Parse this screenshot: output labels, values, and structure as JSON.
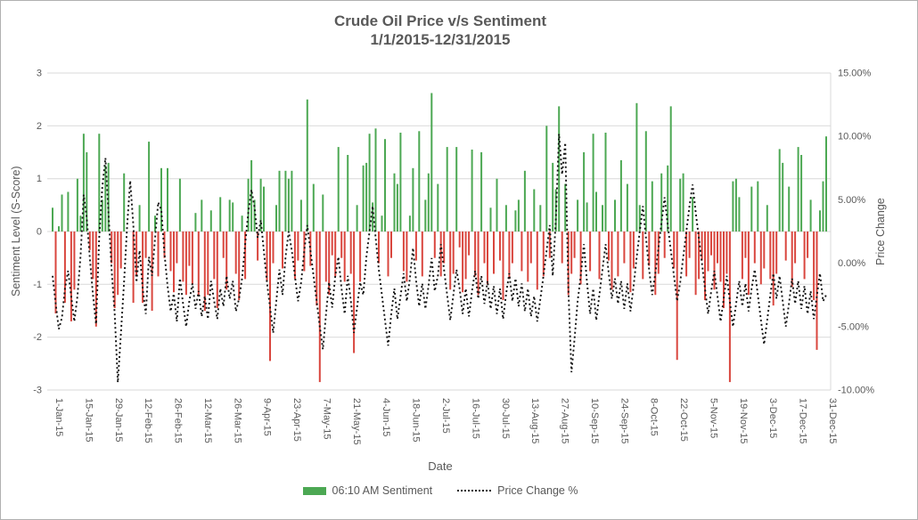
{
  "window": {
    "background": "#ffffff",
    "border_color": "#b0b0b0"
  },
  "chart": {
    "title": "Crude Oil  Price v/s Sentiment",
    "subtitle": "1/1/2015-12/31/2015",
    "x_axis_title": "Date",
    "y_axis_left_title": "Sentiment Level (S-Score)",
    "y_axis_right_title": "Price Change",
    "legend": {
      "sentiment_label": "06:10 AM Sentiment",
      "price_label": "Price Change %"
    }
  },
  "chart_data": {
    "type": "combo-bar-line",
    "title": "Crude Oil  Price v/s Sentiment",
    "subtitle": "1/1/2015-12/31/2015",
    "xlabel": "Date",
    "ylabel_left": "Sentiment Level (S-Score)",
    "ylabel_right": "Price Change",
    "grid": true,
    "legend_position": "bottom",
    "colors": {
      "bar_positive": "#4CA853",
      "bar_negative": "#D9463E",
      "line": "#141414",
      "gridline": "#d9d9d9",
      "text": "#595959"
    },
    "y_axis_left": {
      "min": -3,
      "max": 3,
      "tick_values": [
        3,
        2,
        1,
        0,
        -1,
        -2,
        -3
      ]
    },
    "y_axis_right": {
      "min": -10,
      "max": 15,
      "tick_values": [
        15,
        10,
        5,
        0,
        -5,
        -10
      ],
      "tick_labels": [
        "15.00%",
        "10.00%",
        "5.00%",
        "0.00%",
        "-5.00%",
        "-10.00%"
      ]
    },
    "x_ticks": [
      "1-Jan-15",
      "15-Jan-15",
      "29-Jan-15",
      "12-Feb-15",
      "26-Feb-15",
      "12-Mar-15",
      "26-Mar-15",
      "9-Apr-15",
      "23-Apr-15",
      "7-May-15",
      "21-May-15",
      "4-Jun-15",
      "18-Jun-15",
      "2-Jul-15",
      "16-Jul-15",
      "30-Jul-15",
      "13-Aug-15",
      "27-Aug-15",
      "10-Sep-15",
      "24-Sep-15",
      "8-Oct-15",
      "22-Oct-15",
      "5-Nov-15",
      "19-Nov-15",
      "3-Dec-15",
      "17-Dec-15",
      "31-Dec-15"
    ],
    "series": [
      {
        "name": "06:10 AM Sentiment",
        "type": "bar",
        "axis": "left",
        "values": [
          0.45,
          -1.55,
          0.1,
          0.7,
          -1.35,
          0.75,
          -1.7,
          -1.1,
          1.0,
          0.3,
          1.85,
          1.5,
          -0.35,
          -0.9,
          -1.8,
          1.85,
          0.6,
          1.25,
          1.3,
          -0.6,
          -1.45,
          -1.2,
          -0.7,
          1.1,
          0,
          0,
          -1.35,
          -0.85,
          0.5,
          -1.35,
          -0.5,
          1.7,
          -1.5,
          0.3,
          -0.85,
          1.2,
          -0.5,
          1.2,
          -0.75,
          -1.15,
          -0.6,
          1.0,
          -0.95,
          -1.2,
          -0.65,
          -1.0,
          0.35,
          -1.2,
          0.6,
          -1.5,
          -1.2,
          0.4,
          -0.9,
          -1.45,
          0.65,
          -0.5,
          -1.1,
          0.6,
          0.55,
          -0.8,
          -1.3,
          0.3,
          -0.9,
          1.0,
          1.35,
          0.6,
          -0.55,
          1.0,
          0.85,
          -0.95,
          -2.45,
          -0.6,
          0.5,
          1.15,
          -0.7,
          1.15,
          1.0,
          1.15,
          -0.9,
          -0.55,
          0.6,
          -0.75,
          2.5,
          -0.65,
          0.9,
          -1.4,
          -2.85,
          0.7,
          -0.95,
          -1.2,
          -0.45,
          -0.85,
          1.6,
          -0.5,
          -0.95,
          1.45,
          -0.8,
          -2.3,
          0.5,
          -0.95,
          1.25,
          1.3,
          1.85,
          0.55,
          1.95,
          -0.6,
          0.3,
          1.75,
          -0.85,
          -0.5,
          1.1,
          0.9,
          1.87,
          -0.75,
          -0.95,
          0.3,
          1.2,
          -0.55,
          1.9,
          -0.85,
          0.6,
          1.1,
          2.62,
          -0.5,
          0.9,
          -0.85,
          -0.6,
          1.6,
          -1.1,
          -0.8,
          1.6,
          -0.3,
          -1.15,
          -0.9,
          -0.45,
          1.55,
          -0.85,
          -1.2,
          1.5,
          -0.6,
          -1.0,
          0.45,
          -0.8,
          1.0,
          -0.55,
          -1.3,
          0.5,
          -0.9,
          -0.6,
          0.4,
          0.6,
          -0.75,
          1.15,
          -0.95,
          -0.6,
          0.8,
          -1.1,
          0.5,
          -0.85,
          2.0,
          -0.5,
          1.3,
          0.8,
          2.37,
          -0.6,
          0.9,
          -1.2,
          -0.8,
          -0.5,
          0.6,
          -1.0,
          1.5,
          0.55,
          -0.75,
          1.85,
          0.75,
          -0.9,
          0.5,
          1.87,
          -0.55,
          -1.1,
          0.6,
          -0.85,
          1.35,
          -0.6,
          0.9,
          -1.15,
          -0.7,
          2.43,
          0.5,
          -0.9,
          1.9,
          -0.65,
          0.95,
          -1.2,
          -0.8,
          1.1,
          -0.5,
          1.25,
          2.37,
          -0.7,
          -2.43,
          1.0,
          1.1,
          -0.85,
          -0.5,
          0.65,
          -1.2,
          -0.9,
          -0.55,
          -1.3,
          -0.75,
          -0.45,
          -1.1,
          -0.6,
          -0.95,
          -1.45,
          -0.8,
          -2.85,
          0.95,
          1.0,
          0.65,
          -0.9,
          -0.5,
          -1.2,
          0.85,
          -0.6,
          0.95,
          -1.0,
          -0.7,
          0.5,
          -0.9,
          -1.4,
          -0.8,
          1.56,
          1.3,
          -0.55,
          0.85,
          -1.05,
          -0.6,
          1.6,
          1.45,
          -0.9,
          -0.5,
          0.6,
          -1.3,
          -2.24,
          0.4,
          0.95,
          1.8
        ]
      },
      {
        "name": "Price Change %",
        "type": "line",
        "style": "dotted",
        "axis": "right",
        "values": [
          -1.0,
          -3.2,
          -5.2,
          -4.3,
          -2.0,
          -0.6,
          -2.6,
          -4.6,
          -2.6,
          0.6,
          5.4,
          3.6,
          0.4,
          -2.5,
          -4.8,
          2.0,
          6.0,
          8.3,
          4.0,
          -0.5,
          -4.0,
          -9.4,
          -5.5,
          -1.5,
          3.0,
          6.5,
          3.0,
          -1.5,
          1.0,
          -2.0,
          -4.0,
          0.5,
          -1.0,
          2.0,
          4.8,
          4.2,
          0.8,
          -1.8,
          -3.8,
          -2.4,
          -4.6,
          -1.2,
          -3.2,
          -5.0,
          -3.0,
          -1.6,
          -3.6,
          -2.2,
          -4.2,
          -2.6,
          -4.4,
          -1.4,
          -3.0,
          -4.4,
          -2.0,
          -3.4,
          -1.0,
          -2.8,
          -1.4,
          -3.8,
          -2.8,
          -1.2,
          1.5,
          4.0,
          5.8,
          4.4,
          2.0,
          3.4,
          1.0,
          -1.5,
          -3.5,
          -5.5,
          -3.0,
          -0.5,
          -2.5,
          0.5,
          2.5,
          1.0,
          -1.0,
          -3.0,
          -1.5,
          1.0,
          3.0,
          1.0,
          -1.0,
          -3.0,
          -5.0,
          -6.8,
          -4.0,
          -1.5,
          -3.5,
          -1.0,
          0.5,
          -2.0,
          -4.0,
          -1.0,
          -3.0,
          -5.5,
          -3.5,
          -1.5,
          -2.5,
          0.5,
          2.5,
          4.5,
          2.0,
          -0.5,
          -2.5,
          -4.5,
          -6.5,
          -4.0,
          -2.0,
          -4.4,
          -2.6,
          -0.8,
          -3.0,
          -1.2,
          1.2,
          -1.4,
          -3.4,
          -1.6,
          -3.6,
          -1.8,
          0.4,
          -2.2,
          -1.0,
          1.5,
          -0.5,
          -2.5,
          -4.5,
          -2.5,
          -0.5,
          -2.0,
          -4.0,
          -2.0,
          -4.2,
          -2.2,
          -0.6,
          -2.8,
          -1.0,
          -3.2,
          -1.4,
          -3.6,
          -1.8,
          -4.0,
          -2.0,
          -4.4,
          -2.4,
          -0.8,
          -3.0,
          -1.2,
          -3.4,
          -1.6,
          -3.8,
          -2.0,
          -4.2,
          -2.6,
          -4.6,
          -2.8,
          -1.0,
          1.0,
          3.0,
          -1.0,
          3.5,
          10.2,
          7.0,
          9.5,
          -2.0,
          -8.6,
          -6.0,
          -3.0,
          -1.0,
          1.5,
          -1.5,
          -4.0,
          -2.0,
          -4.5,
          -2.5,
          -0.5,
          1.5,
          -0.8,
          -2.8,
          -1.2,
          -3.2,
          -1.4,
          -3.6,
          -1.6,
          -3.8,
          -1.8,
          0.5,
          2.5,
          4.5,
          2.0,
          -0.5,
          -2.5,
          -0.8,
          1.2,
          3.2,
          5.2,
          3.0,
          1.0,
          -1.0,
          -3.0,
          -1.5,
          0.5,
          2.5,
          4.5,
          6.2,
          4.0,
          2.0,
          0.0,
          -2.0,
          -4.0,
          -2.2,
          -0.6,
          -2.6,
          -4.6,
          -2.8,
          -1.0,
          -3.0,
          -5.0,
          -3.2,
          -1.4,
          -3.4,
          -1.6,
          -3.8,
          -2.0,
          -0.5,
          -2.5,
          -4.5,
          -6.4,
          -4.5,
          -2.5,
          -0.8,
          -2.8,
          -1.0,
          -3.0,
          -5.0,
          -3.2,
          -1.2,
          -3.2,
          -1.4,
          -3.6,
          -1.8,
          -4.0,
          -2.2,
          -4.4,
          -2.6,
          -0.8,
          -3.0,
          -2.5
        ]
      }
    ]
  }
}
